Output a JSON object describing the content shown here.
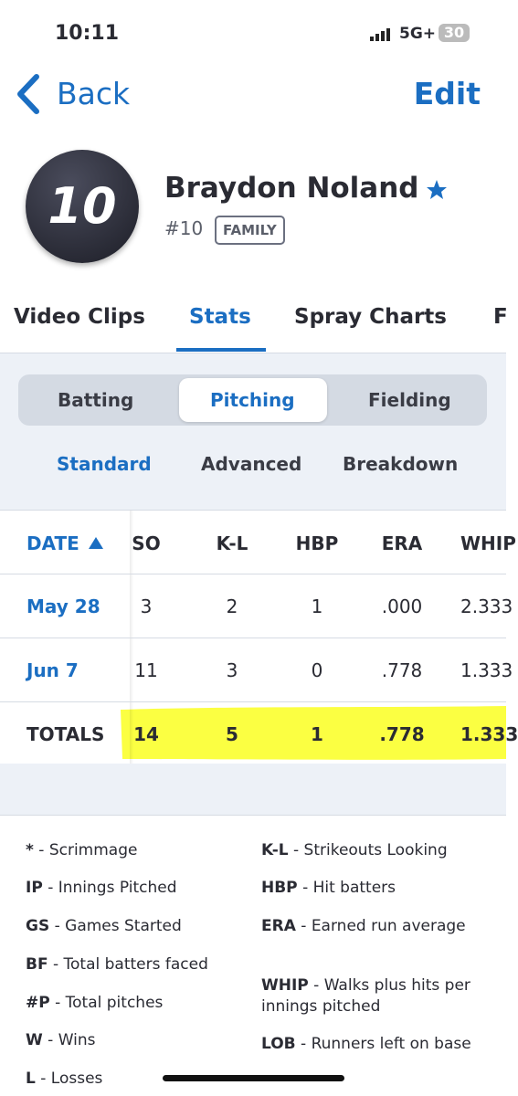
{
  "status_bar": {
    "time": "10:11",
    "network": "5G+",
    "battery": "30"
  },
  "nav": {
    "back": "Back",
    "edit": "Edit"
  },
  "player": {
    "number_badge": "10",
    "name": "Braydon Noland",
    "number": "#10",
    "role": "FAMILY"
  },
  "tabs": [
    "Video Clips",
    "Stats",
    "Spray Charts",
    "F"
  ],
  "segments": [
    "Batting",
    "Pitching",
    "Fielding"
  ],
  "sub_tabs": [
    "Standard",
    "Advanced",
    "Breakdown"
  ],
  "table": {
    "headers": [
      "DATE",
      "SO",
      "K-L",
      "HBP",
      "ERA",
      "WHIP"
    ],
    "rows": [
      [
        "May 28",
        "3",
        "2",
        "1",
        ".000",
        "2.333"
      ],
      [
        "Jun 7",
        "11",
        "3",
        "0",
        ".778",
        "1.333"
      ],
      [
        "TOTALS",
        "14",
        "5",
        "1",
        ".778",
        "1.333"
      ]
    ]
  },
  "legend": {
    "left": [
      {
        "abbr": "*",
        "text": "- Scrimmage"
      },
      {
        "abbr": "IP",
        "text": "- Innings Pitched"
      },
      {
        "abbr": "GS",
        "text": "- Games Started"
      },
      {
        "abbr": "BF",
        "text": "- Total batters faced"
      },
      {
        "abbr": "#P",
        "text": "- Total pitches"
      },
      {
        "abbr": "W",
        "text": "- Wins"
      },
      {
        "abbr": "L",
        "text": "- Losses"
      }
    ],
    "right": [
      {
        "abbr": "K-L",
        "text": "- Strikeouts Looking"
      },
      {
        "abbr": "HBP",
        "text": "- Hit batters"
      },
      {
        "abbr": "ERA",
        "text": "- Earned run average"
      },
      {
        "abbr": "WHIP",
        "text": "- Walks plus hits per innings pitched"
      },
      {
        "abbr": "LOB",
        "text": "- Runners left on base"
      }
    ]
  }
}
